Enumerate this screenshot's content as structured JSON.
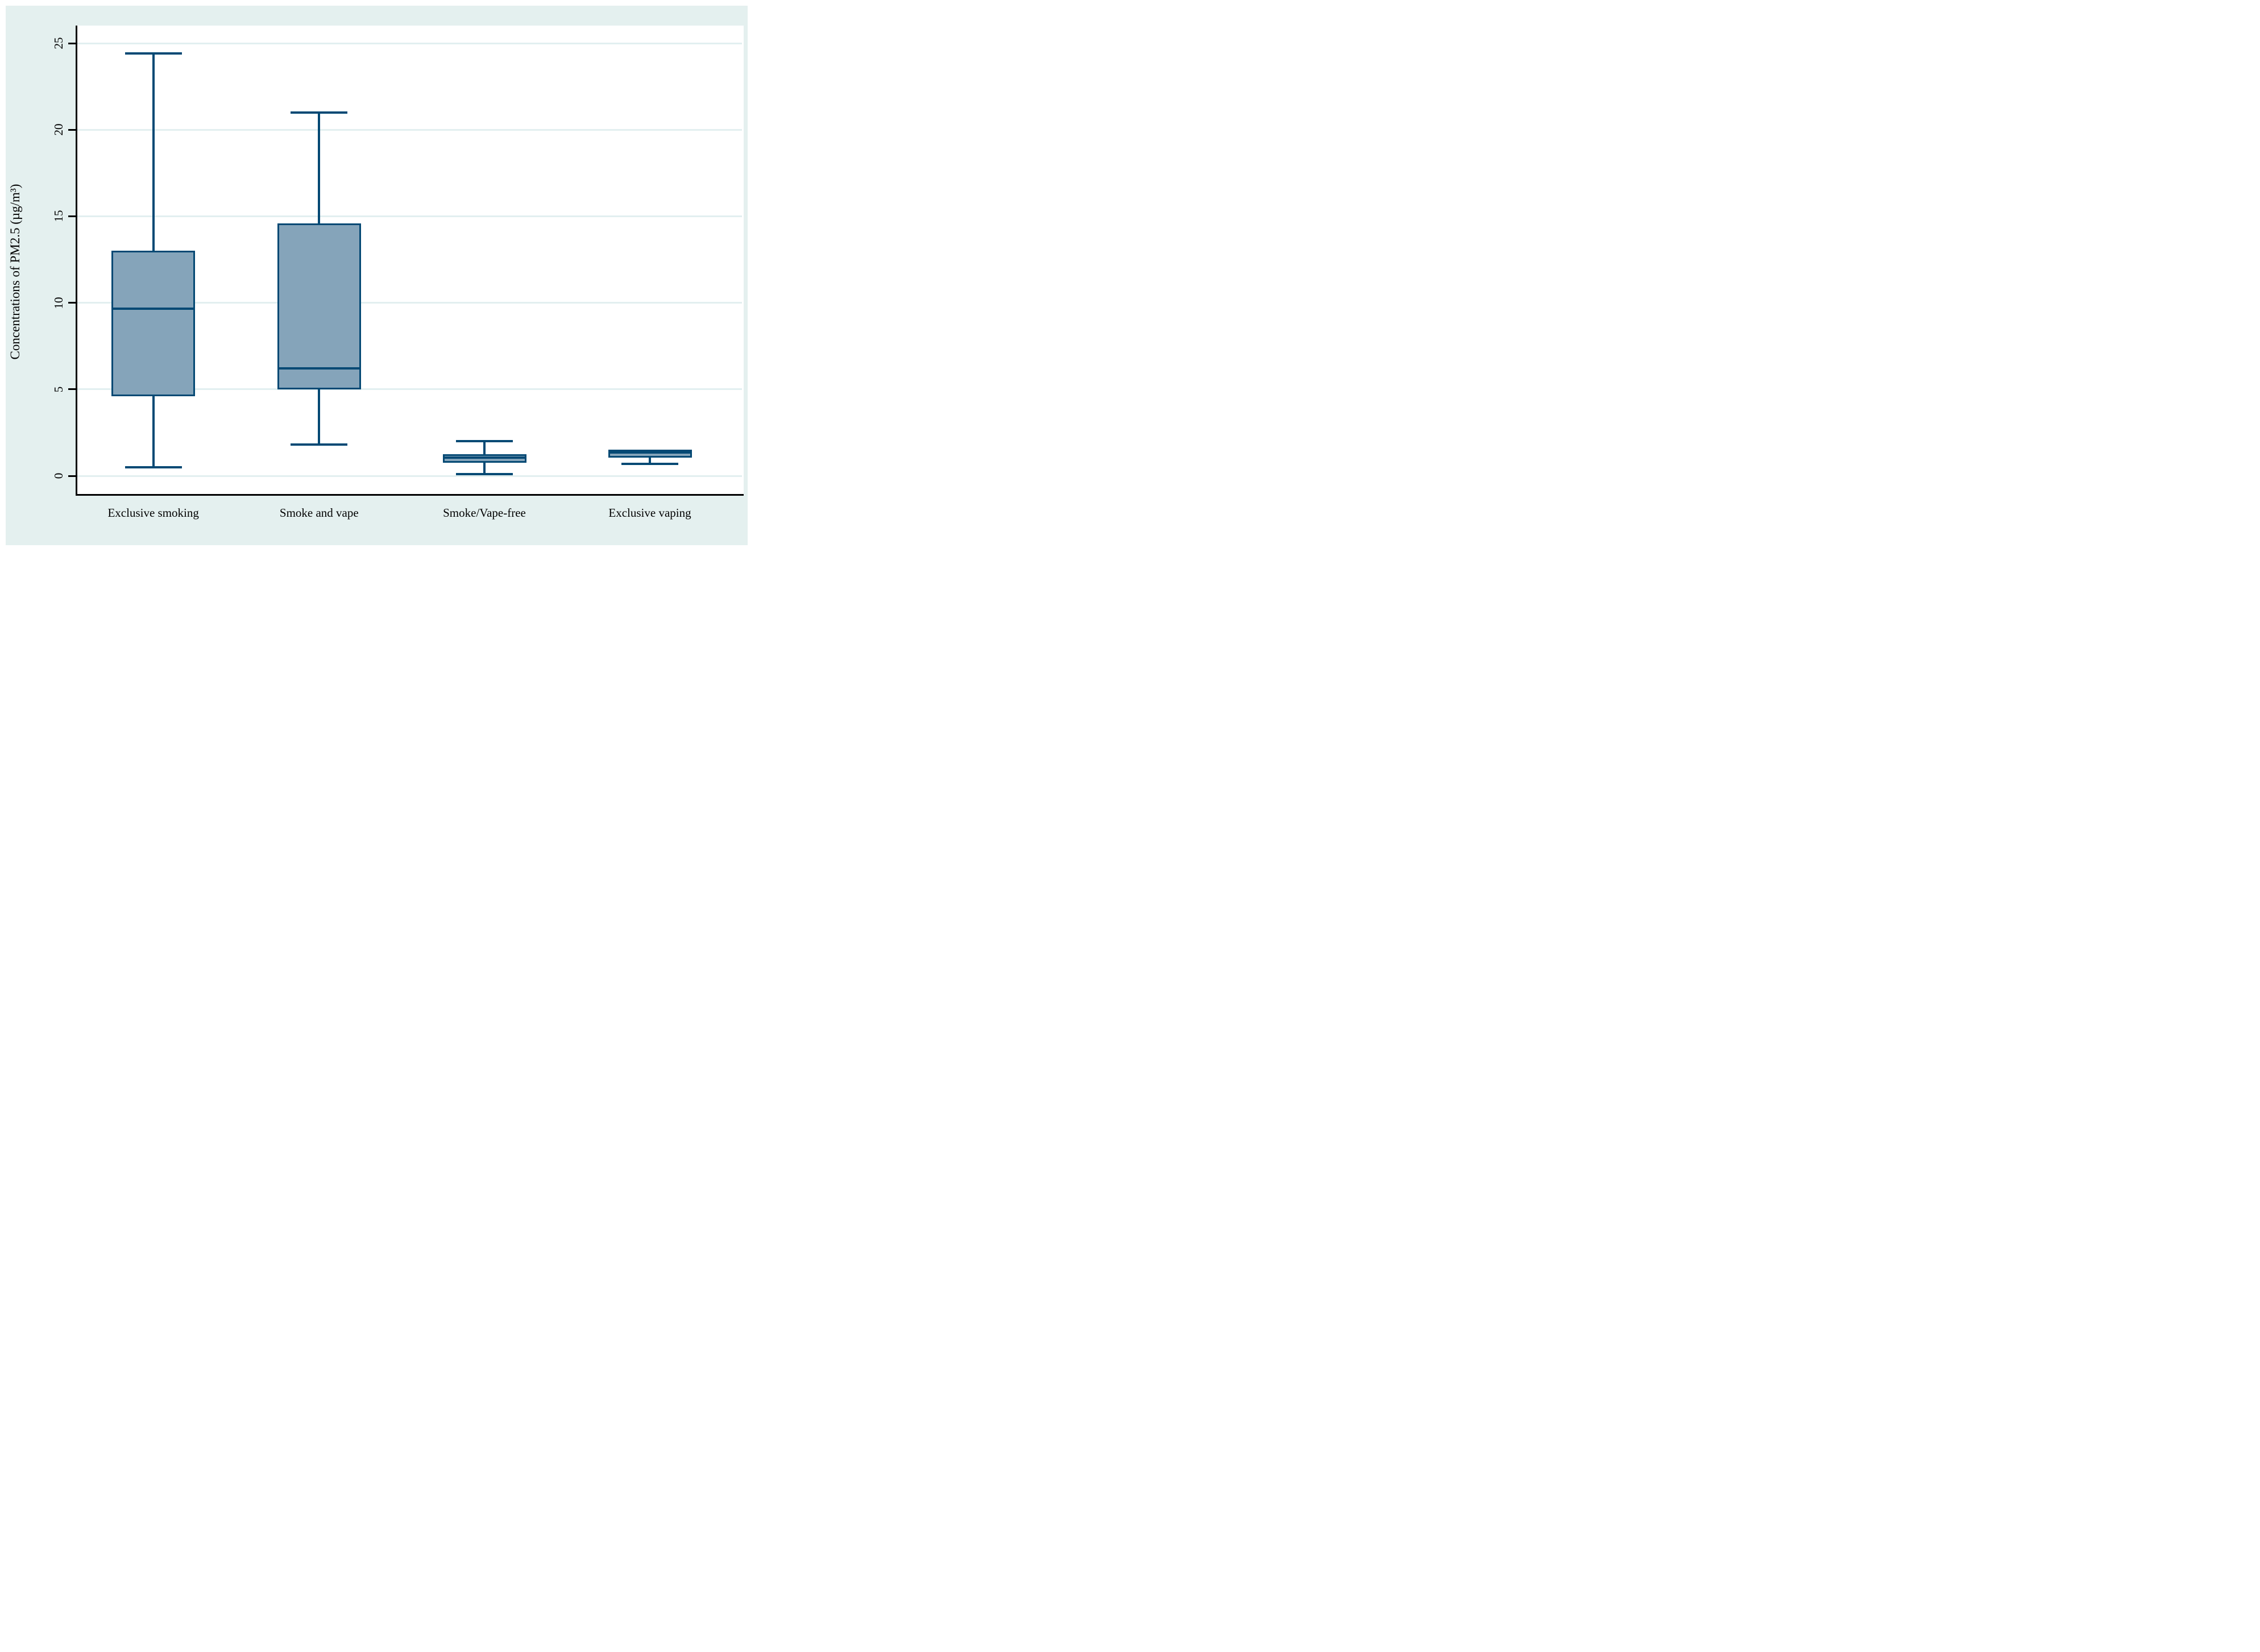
{
  "figure": {
    "page_background": "#ffffff",
    "panel_background": "#e4f0ef",
    "plot_background": "#ffffff",
    "axis_color": "#000000",
    "grid_color": "#e2eff0",
    "text_color": "#000000"
  },
  "box_style": {
    "fill": "#85a4ba",
    "stroke": "#044974"
  },
  "chart_data": {
    "type": "box",
    "title": "",
    "xlabel": "",
    "ylabel": "Concentrations of PM2.5 (µg/m³)",
    "ylim": [
      -1.1,
      26.0
    ],
    "yticks": [
      0,
      5,
      10,
      15,
      20,
      25
    ],
    "ytick_labels": [
      "0",
      "5",
      "10",
      "15",
      "20",
      "25"
    ],
    "grid": "horizontal",
    "legend": "none",
    "categories": [
      "Exclusive smoking",
      "Smoke and vape",
      "Smoke/Vape-free",
      "Exclusive vaping"
    ],
    "boxes": [
      {
        "label": "Exclusive smoking",
        "whisker_low": 0.5,
        "q1": 4.6,
        "median": 9.65,
        "q3": 13.0,
        "whisker_high": 24.4
      },
      {
        "label": "Smoke and vape",
        "whisker_low": 1.8,
        "q1": 5.0,
        "median": 6.2,
        "q3": 14.6,
        "whisker_high": 21.0
      },
      {
        "label": "Smoke/Vape-free",
        "whisker_low": 0.1,
        "q1": 0.75,
        "median": 1.05,
        "q3": 1.25,
        "whisker_high": 2.0
      },
      {
        "label": "Exclusive vaping",
        "whisker_low": 0.7,
        "q1": 1.05,
        "median": 1.35,
        "q3": 1.5,
        "whisker_high": 1.5
      }
    ]
  }
}
